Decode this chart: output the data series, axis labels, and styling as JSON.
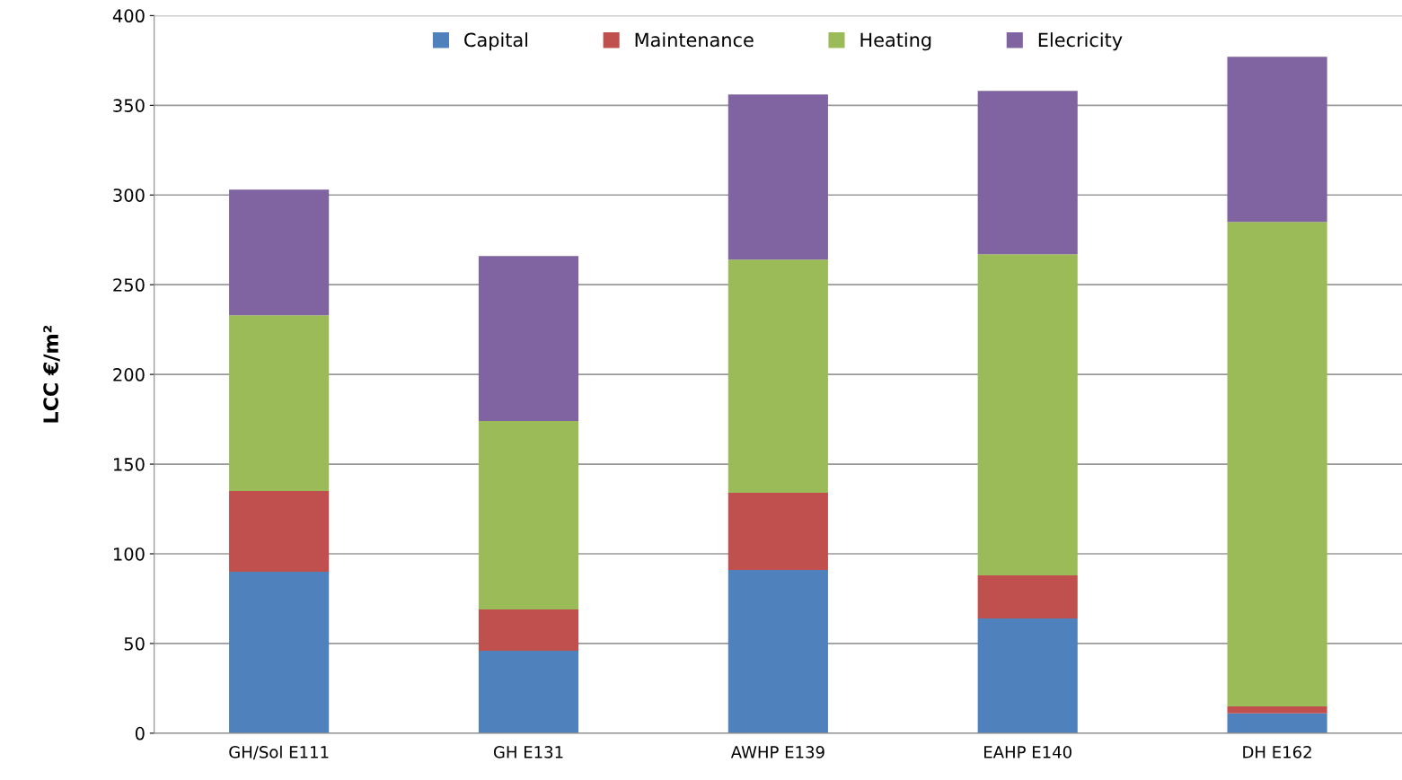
{
  "chart_data": {
    "type": "bar",
    "stacked": true,
    "ylabel": "LCC €/m²",
    "categories": [
      "GH/Sol E111",
      "GH E131",
      "AWHP E139",
      "EAHP E140",
      "DH E162"
    ],
    "series": [
      {
        "name": "Capital",
        "color": "#4f81bd",
        "values": [
          90,
          46,
          91,
          64,
          11
        ]
      },
      {
        "name": "Maintenance",
        "color": "#c0504d",
        "values": [
          45,
          23,
          43,
          24,
          4
        ]
      },
      {
        "name": "Heating",
        "color": "#9bbb59",
        "values": [
          98,
          105,
          130,
          179,
          270
        ]
      },
      {
        "name": "Elecricity",
        "color": "#8064a2",
        "values": [
          70,
          92,
          92,
          91,
          92
        ]
      }
    ],
    "ylim": [
      0,
      400
    ],
    "yticks": [
      0,
      50,
      100,
      150,
      200,
      250,
      300,
      350,
      400
    ],
    "grid": "y",
    "legend": "top"
  }
}
